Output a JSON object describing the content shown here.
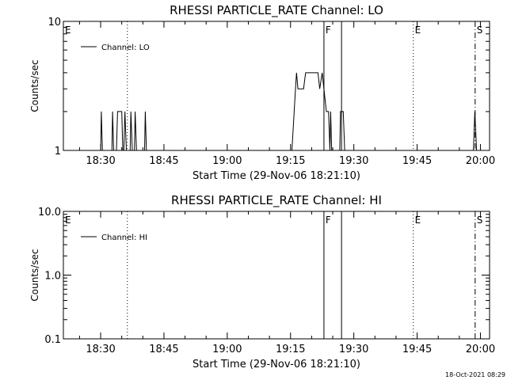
{
  "footer_date": "18-Oct-2021 08:29",
  "chart_data": [
    {
      "type": "line",
      "title": "RHESSI PARTICLE_RATE Channel: LO",
      "xlabel": "Start Time (29-Nov-06 18:21:10)",
      "ylabel": "Counts/sec",
      "y_scale": "log",
      "ylim": [
        1,
        10
      ],
      "y_ticks": [
        {
          "value": 1,
          "label": "1"
        },
        {
          "value": 10,
          "label": "10"
        }
      ],
      "xlim": [
        "18:21:10",
        "20:02:10"
      ],
      "x_ticks": [
        "18:30",
        "18:45",
        "19:00",
        "19:15",
        "19:30",
        "19:45",
        "20:00"
      ],
      "legend": {
        "position": "top-left",
        "entries": [
          "Channel: LO"
        ]
      },
      "event_markers": [
        {
          "label": "E",
          "time": "18:21:10",
          "style": "none"
        },
        {
          "label": "",
          "time": "18:36:20",
          "style": "dotted"
        },
        {
          "label": "F",
          "time": "19:22:55",
          "style": "solid"
        },
        {
          "label": "",
          "time": "19:27:05",
          "style": "solid"
        },
        {
          "label": "E",
          "time": "19:44:05",
          "style": "dotted"
        },
        {
          "label": "S",
          "time": "19:58:45",
          "style": "dashdot"
        }
      ],
      "series": [
        {
          "name": "Channel: LO",
          "points": [
            [
              "18:30:00",
              1
            ],
            [
              "18:30:10",
              2
            ],
            [
              "18:30:25",
              1
            ],
            [
              "18:32:40",
              1
            ],
            [
              "18:32:50",
              2
            ],
            [
              "18:33:05",
              1
            ],
            [
              "18:33:45",
              1
            ],
            [
              "18:34:00",
              2
            ],
            [
              "18:35:00",
              2
            ],
            [
              "18:35:15",
              1
            ],
            [
              "18:35:30",
              1
            ],
            [
              "18:35:45",
              2
            ],
            [
              "18:36:05",
              1
            ],
            [
              "18:37:00",
              1
            ],
            [
              "18:37:10",
              2
            ],
            [
              "18:37:30",
              1
            ],
            [
              "18:38:00",
              1
            ],
            [
              "18:38:10",
              2
            ],
            [
              "18:38:30",
              1
            ],
            [
              "18:40:25",
              1
            ],
            [
              "18:40:35",
              2
            ],
            [
              "18:40:50",
              1
            ],
            [
              "19:15:20",
              1
            ],
            [
              "19:16:10",
              3
            ],
            [
              "19:16:25",
              4
            ],
            [
              "19:16:45",
              3
            ],
            [
              "19:18:05",
              3
            ],
            [
              "19:18:35",
              4
            ],
            [
              "19:21:30",
              4
            ],
            [
              "19:21:55",
              3
            ],
            [
              "19:22:30",
              4
            ],
            [
              "19:22:55",
              3
            ],
            [
              "19:23:30",
              2
            ],
            [
              "19:24:00",
              2
            ],
            [
              "19:24:20",
              1
            ],
            [
              "19:24:30",
              2
            ],
            [
              "19:24:45",
              1
            ],
            [
              "19:26:40",
              1
            ],
            [
              "19:26:50",
              2
            ],
            [
              "19:27:30",
              2
            ],
            [
              "19:27:50",
              1
            ],
            [
              "19:58:20",
              1
            ],
            [
              "19:58:40",
              2
            ],
            [
              "19:59:05",
              1
            ]
          ]
        }
      ]
    },
    {
      "type": "line",
      "title": "RHESSI PARTICLE_RATE Channel: HI",
      "xlabel": "Start Time (29-Nov-06 18:21:10)",
      "ylabel": "Counts/sec",
      "y_scale": "log",
      "ylim": [
        0.1,
        10
      ],
      "y_ticks": [
        {
          "value": 0.1,
          "label": "0.1"
        },
        {
          "value": 1,
          "label": "1.0"
        },
        {
          "value": 10,
          "label": "10.0"
        }
      ],
      "xlim": [
        "18:21:10",
        "20:02:10"
      ],
      "x_ticks": [
        "18:30",
        "18:45",
        "19:00",
        "19:15",
        "19:30",
        "19:45",
        "20:00"
      ],
      "legend": {
        "position": "top-left",
        "entries": [
          "Channel: HI"
        ]
      },
      "event_markers": [
        {
          "label": "E",
          "time": "18:21:10",
          "style": "none"
        },
        {
          "label": "",
          "time": "18:36:20",
          "style": "dotted"
        },
        {
          "label": "F",
          "time": "19:22:55",
          "style": "solid"
        },
        {
          "label": "",
          "time": "19:27:05",
          "style": "solid"
        },
        {
          "label": "E",
          "time": "19:44:05",
          "style": "dotted"
        },
        {
          "label": "S",
          "time": "19:58:45",
          "style": "dashdot"
        }
      ],
      "series": [
        {
          "name": "Channel: HI",
          "points": []
        }
      ]
    }
  ]
}
